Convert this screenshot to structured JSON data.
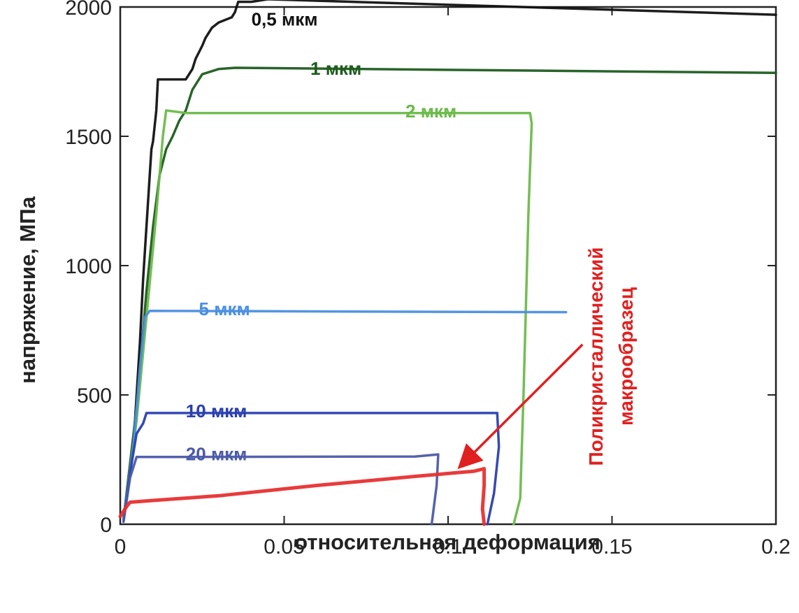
{
  "chart_data": {
    "type": "line",
    "xlabel": "относительная деформация",
    "ylabel": "напряжение, МПа",
    "xlim": [
      0,
      0.2
    ],
    "ylim": [
      0,
      2000
    ],
    "xticks": [
      {
        "value": 0,
        "label": "0"
      },
      {
        "value": 0.05,
        "label": "0.05"
      },
      {
        "value": 0.1,
        "label": "0.1"
      },
      {
        "value": 0.15,
        "label": "0.15"
      },
      {
        "value": 0.2,
        "label": "0.2"
      }
    ],
    "yticks": [
      {
        "value": 0,
        "label": "0"
      },
      {
        "value": 500,
        "label": "500"
      },
      {
        "value": 1000,
        "label": "1000"
      },
      {
        "value": 1500,
        "label": "1500"
      },
      {
        "value": 2000,
        "label": "2000"
      }
    ],
    "series": [
      {
        "name": "0,5 мкм",
        "color": "#111111",
        "points": [
          [
            0.001,
            20
          ],
          [
            0.004,
            300
          ],
          [
            0.006,
            700
          ],
          [
            0.007,
            950
          ],
          [
            0.008,
            1150
          ],
          [
            0.009,
            1350
          ],
          [
            0.0095,
            1450
          ],
          [
            0.01,
            1480
          ],
          [
            0.011,
            1600
          ],
          [
            0.0115,
            1720
          ],
          [
            0.015,
            1720
          ],
          [
            0.02,
            1720
          ],
          [
            0.022,
            1760
          ],
          [
            0.023,
            1800
          ],
          [
            0.025,
            1850
          ],
          [
            0.026,
            1880
          ],
          [
            0.028,
            1920
          ],
          [
            0.03,
            1940
          ],
          [
            0.032,
            1950
          ],
          [
            0.034,
            1960
          ],
          [
            0.035,
            1980
          ],
          [
            0.036,
            2020
          ],
          [
            0.04,
            2020
          ],
          [
            0.045,
            2030
          ],
          [
            0.2,
            1970
          ]
        ],
        "label_at": [
          0.04,
          1955
        ]
      },
      {
        "name": "1 мкм",
        "color": "#1e5c1e",
        "points": [
          [
            0.001,
            20
          ],
          [
            0.005,
            450
          ],
          [
            0.008,
            900
          ],
          [
            0.01,
            1150
          ],
          [
            0.012,
            1350
          ],
          [
            0.014,
            1450
          ],
          [
            0.016,
            1500
          ],
          [
            0.018,
            1560
          ],
          [
            0.02,
            1600
          ],
          [
            0.022,
            1680
          ],
          [
            0.025,
            1740
          ],
          [
            0.03,
            1760
          ],
          [
            0.035,
            1765
          ],
          [
            0.2,
            1745
          ]
        ],
        "label_at": [
          0.058,
          1765
        ]
      },
      {
        "name": "2 мкм",
        "color": "#6cba4a",
        "points": [
          [
            0.001,
            20
          ],
          [
            0.005,
            400
          ],
          [
            0.008,
            800
          ],
          [
            0.011,
            1200
          ],
          [
            0.013,
            1500
          ],
          [
            0.014,
            1600
          ],
          [
            0.02,
            1590
          ],
          [
            0.125,
            1590
          ],
          [
            0.1255,
            1550
          ],
          [
            0.1245,
            1200
          ],
          [
            0.123,
            500
          ],
          [
            0.122,
            100
          ],
          [
            0.12,
            0
          ]
        ],
        "label_at": [
          0.087,
          1600
        ]
      },
      {
        "name": "5 мкм",
        "color": "#4a8fe0",
        "points": [
          [
            0.001,
            20
          ],
          [
            0.004,
            300
          ],
          [
            0.006,
            600
          ],
          [
            0.0075,
            800
          ],
          [
            0.009,
            825
          ],
          [
            0.136,
            820
          ]
        ],
        "label_at": [
          0.024,
          835
        ]
      },
      {
        "name": "10 мкм",
        "color": "#2a3fb0",
        "points": [
          [
            0.001,
            10
          ],
          [
            0.003,
            200
          ],
          [
            0.005,
            350
          ],
          [
            0.007,
            390
          ],
          [
            0.008,
            430
          ],
          [
            0.11,
            430
          ],
          [
            0.115,
            430
          ],
          [
            0.1155,
            300
          ],
          [
            0.114,
            120
          ],
          [
            0.112,
            0
          ]
        ],
        "label_at": [
          0.02,
          440
        ]
      },
      {
        "name": "20 мкм",
        "color": "#4c5aa8",
        "points": [
          [
            0.001,
            10
          ],
          [
            0.003,
            180
          ],
          [
            0.005,
            260
          ],
          [
            0.09,
            262
          ],
          [
            0.097,
            270
          ],
          [
            0.0965,
            150
          ],
          [
            0.0955,
            50
          ],
          [
            0.095,
            0
          ]
        ],
        "label_at": [
          0.02,
          275
        ]
      },
      {
        "name": "",
        "color": "#e83030",
        "points": [
          [
            0.0,
            30
          ],
          [
            0.002,
            70
          ],
          [
            0.003,
            85
          ],
          [
            0.01,
            92
          ],
          [
            0.03,
            110
          ],
          [
            0.06,
            150
          ],
          [
            0.09,
            185
          ],
          [
            0.108,
            205
          ],
          [
            0.111,
            215
          ],
          [
            0.111,
            150
          ],
          [
            0.1105,
            60
          ],
          [
            0.111,
            0
          ]
        ]
      }
    ],
    "annotation": {
      "text_lines": [
        "Поликристаллический",
        "макрообразец"
      ],
      "arrow_from": [
        0.141,
        695
      ],
      "arrow_to": [
        0.105,
        240
      ]
    }
  }
}
